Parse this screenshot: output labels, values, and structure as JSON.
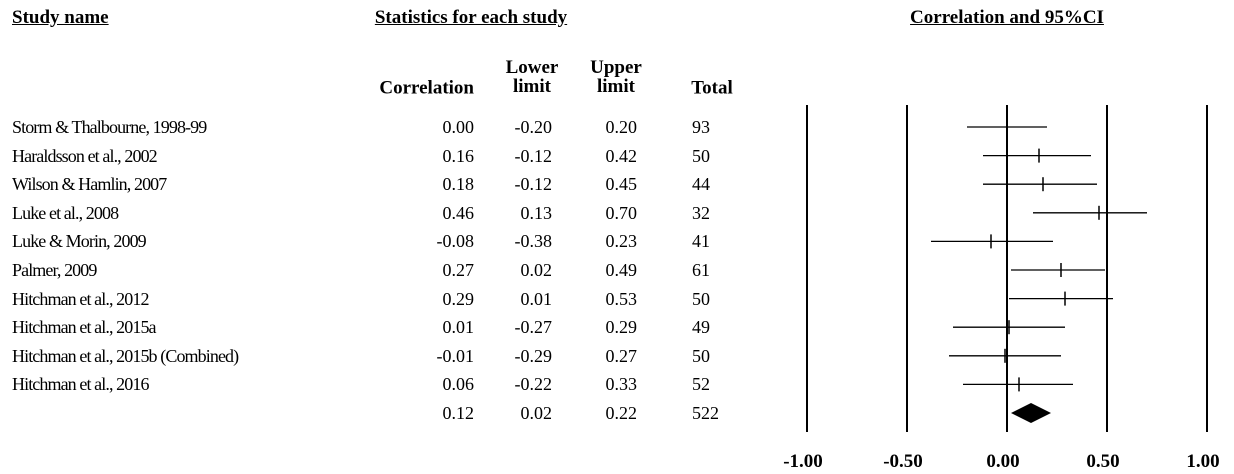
{
  "chart_data": {
    "type": "forest",
    "headers": {
      "study": "Study name",
      "stats": "Statistics for each study",
      "plot": "Correlation and 95%CI"
    },
    "columns": [
      "Correlation",
      "Lower limit",
      "Upper limit",
      "Total"
    ],
    "studies": [
      "Storm & Thalbourne, 1998-99",
      "Haraldsson et al., 2002",
      "Wilson & Hamlin, 2007",
      "Luke et al., 2008",
      "Luke & Morin, 2009",
      "Palmer, 2009",
      "Hitchman et al., 2012",
      "Hitchman et al., 2015a",
      "Hitchman et al., 2015b (Combined)",
      "Hitchman et al., 2016",
      null
    ],
    "correlation": {
      "values": [
        0,
        0.16,
        0.18,
        0.46,
        -0.08,
        0.27,
        0.29,
        0.01,
        -0.01,
        0.06,
        0.12
      ],
      "value_labels": [
        "0.00",
        "0.16",
        "0.18",
        "0.46",
        "-0.08",
        "0.27",
        "0.29",
        "0.01",
        "-0.01",
        "0.06",
        "0.12"
      ]
    },
    "lower": {
      "values": [
        -0.2,
        -0.12,
        -0.12,
        0.13,
        -0.38,
        0.02,
        0.01,
        -0.27,
        -0.29,
        -0.22,
        0.02
      ],
      "value_labels": [
        "-0.20",
        "-0.12",
        "-0.12",
        "0.13",
        "-0.38",
        "0.02",
        "0.01",
        "-0.27",
        "-0.29",
        "-0.22",
        "0.02"
      ]
    },
    "upper": {
      "values": [
        0.2,
        0.42,
        0.45,
        0.7,
        0.23,
        0.49,
        0.53,
        0.29,
        0.27,
        0.33,
        0.22
      ],
      "value_labels": [
        "0.20",
        "0.42",
        "0.45",
        "0.70",
        "0.23",
        "0.49",
        "0.53",
        "0.29",
        "0.27",
        "0.33",
        "0.22"
      ]
    },
    "total": [
      93,
      50,
      44,
      32,
      41,
      61,
      50,
      49,
      50,
      52,
      522
    ],
    "xlim": [
      -1,
      1
    ],
    "xticks": [
      {
        "value": -1,
        "label": "-1.00"
      },
      {
        "value": -0.5,
        "label": "-0.50"
      },
      {
        "value": 0,
        "label": "0.00"
      },
      {
        "value": 0.5,
        "label": "0.50"
      },
      {
        "value": 1,
        "label": "1.00"
      }
    ],
    "color": "#000000"
  }
}
